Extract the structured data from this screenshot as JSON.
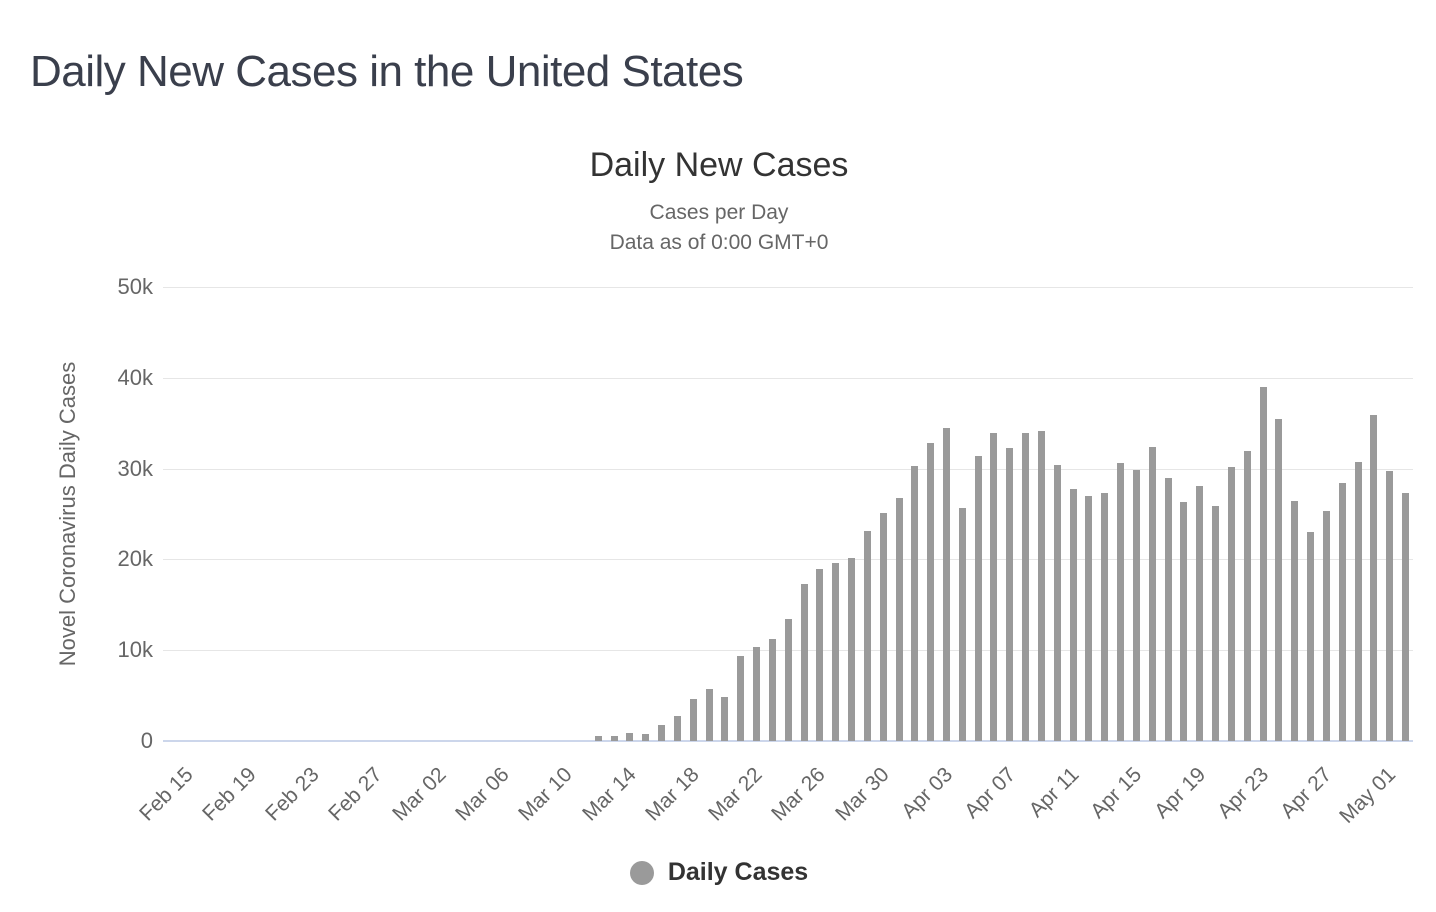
{
  "page": {
    "title": "Daily New Cases in the United States"
  },
  "chart": {
    "title": "Daily New Cases",
    "subtitle_line1": "Cases per Day",
    "subtitle_line2": "Data as of 0:00 GMT+0",
    "y_axis_title": "Novel Coronavirus Daily Cases",
    "legend_label": "Daily Cases",
    "colors": {
      "bar": "#9a9a9a",
      "gridline": "#e6e6e6",
      "axis_line": "#ccd6eb",
      "muted_text": "#666666",
      "title_text": "#333333",
      "page_title_text": "#3a3f4c"
    }
  },
  "chart_data": {
    "type": "bar",
    "title": "Daily New Cases",
    "subtitle": "Cases per Day / Data as of 0:00 GMT+0",
    "xlabel": "",
    "ylabel": "Novel Coronavirus Daily Cases",
    "ylim": [
      0,
      50000
    ],
    "ytick_values": [
      0,
      10000,
      20000,
      30000,
      40000,
      50000
    ],
    "ytick_labels": [
      "0",
      "10k",
      "20k",
      "30k",
      "40k",
      "50k"
    ],
    "grid": true,
    "legend": [
      "Daily Cases"
    ],
    "legend_position": "bottom",
    "x_tick_every": 4,
    "x_tick_labels": [
      "Feb 15",
      "Feb 19",
      "Feb 23",
      "Feb 27",
      "Mar 02",
      "Mar 06",
      "Mar 10",
      "Mar 14",
      "Mar 18",
      "Mar 22",
      "Mar 26",
      "Mar 30",
      "Apr 03",
      "Apr 07",
      "Apr 11",
      "Apr 15",
      "Apr 19",
      "Apr 23",
      "Apr 27",
      "May 01"
    ],
    "categories": [
      "Feb 15",
      "Feb 16",
      "Feb 17",
      "Feb 18",
      "Feb 19",
      "Feb 20",
      "Feb 21",
      "Feb 22",
      "Feb 23",
      "Feb 24",
      "Feb 25",
      "Feb 26",
      "Feb 27",
      "Feb 28",
      "Feb 29",
      "Mar 01",
      "Mar 02",
      "Mar 03",
      "Mar 04",
      "Mar 05",
      "Mar 06",
      "Mar 07",
      "Mar 08",
      "Mar 09",
      "Mar 10",
      "Mar 11",
      "Mar 12",
      "Mar 13",
      "Mar 14",
      "Mar 15",
      "Mar 16",
      "Mar 17",
      "Mar 18",
      "Mar 19",
      "Mar 20",
      "Mar 21",
      "Mar 22",
      "Mar 23",
      "Mar 24",
      "Mar 25",
      "Mar 26",
      "Mar 27",
      "Mar 28",
      "Mar 29",
      "Mar 30",
      "Mar 31",
      "Apr 01",
      "Apr 02",
      "Apr 03",
      "Apr 04",
      "Apr 05",
      "Apr 06",
      "Apr 07",
      "Apr 08",
      "Apr 09",
      "Apr 10",
      "Apr 11",
      "Apr 12",
      "Apr 13",
      "Apr 14",
      "Apr 15",
      "Apr 16",
      "Apr 17",
      "Apr 18",
      "Apr 19",
      "Apr 20",
      "Apr 21",
      "Apr 22",
      "Apr 23",
      "Apr 24",
      "Apr 25",
      "Apr 26",
      "Apr 27",
      "Apr 28",
      "Apr 29",
      "Apr 30",
      "May 01",
      "May 02",
      "May 03"
    ],
    "values": [
      0,
      0,
      0,
      0,
      0,
      0,
      0,
      0,
      0,
      0,
      0,
      0,
      0,
      0,
      0,
      0,
      0,
      0,
      0,
      0,
      0,
      0,
      0,
      0,
      0,
      0,
      0,
      600,
      600,
      900,
      800,
      1800,
      2800,
      4600,
      5700,
      4800,
      9400,
      10300,
      11200,
      13400,
      17300,
      18900,
      19600,
      20200,
      23100,
      25100,
      26800,
      30300,
      32800,
      34500,
      25700,
      31400,
      33900,
      32300,
      33900,
      34100,
      30400,
      27700,
      27000,
      27300,
      30600,
      29900,
      32400,
      29000,
      26300,
      28100,
      25900,
      30200,
      31900,
      39000,
      35500,
      26400,
      23000,
      25300,
      28400,
      30700,
      35900,
      29700,
      27300
    ]
  }
}
